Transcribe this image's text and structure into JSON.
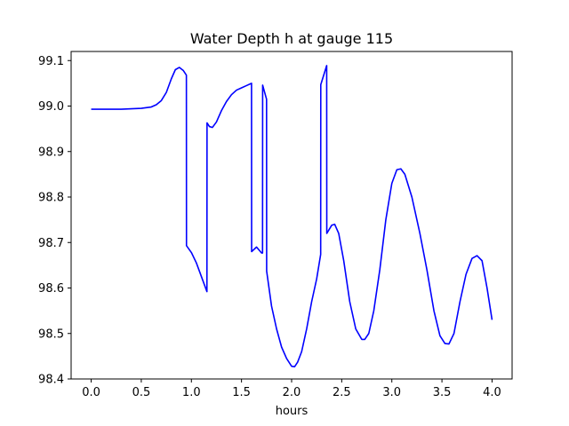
{
  "chart_data": {
    "type": "line",
    "title": "Water Depth h at gauge 115",
    "xlabel": "hours",
    "ylabel": "",
    "xlim": [
      -0.2,
      4.2
    ],
    "ylim": [
      98.4,
      99.12
    ],
    "xticks": [
      0.0,
      0.5,
      1.0,
      1.5,
      2.0,
      2.5,
      3.0,
      3.5,
      4.0
    ],
    "xtick_labels": [
      "0.0",
      "0.5",
      "1.0",
      "1.5",
      "2.0",
      "2.5",
      "3.0",
      "3.5",
      "4.0"
    ],
    "yticks": [
      98.4,
      98.5,
      98.6,
      98.7,
      98.8,
      98.9,
      99.0,
      99.1
    ],
    "ytick_labels": [
      "98.4",
      "98.5",
      "98.6",
      "98.7",
      "98.8",
      "98.9",
      "99.0",
      "99.1"
    ],
    "grid": false,
    "series": [
      {
        "color": "#0000ff",
        "points": [
          [
            0.0,
            98.993
          ],
          [
            0.1,
            98.993
          ],
          [
            0.2,
            98.993
          ],
          [
            0.3,
            98.993
          ],
          [
            0.4,
            98.994
          ],
          [
            0.5,
            98.995
          ],
          [
            0.6,
            98.998
          ],
          [
            0.65,
            99.003
          ],
          [
            0.7,
            99.012
          ],
          [
            0.75,
            99.03
          ],
          [
            0.8,
            99.06
          ],
          [
            0.84,
            99.08
          ],
          [
            0.88,
            99.085
          ],
          [
            0.92,
            99.078
          ],
          [
            0.95,
            99.068
          ],
          [
            0.951,
            98.693
          ],
          [
            1.0,
            98.678
          ],
          [
            1.05,
            98.655
          ],
          [
            1.1,
            98.625
          ],
          [
            1.155,
            98.592
          ],
          [
            1.156,
            98.963
          ],
          [
            1.18,
            98.955
          ],
          [
            1.21,
            98.953
          ],
          [
            1.25,
            98.965
          ],
          [
            1.3,
            98.99
          ],
          [
            1.35,
            99.01
          ],
          [
            1.4,
            99.025
          ],
          [
            1.45,
            99.035
          ],
          [
            1.5,
            99.04
          ],
          [
            1.55,
            99.045
          ],
          [
            1.6,
            99.05
          ],
          [
            1.601,
            98.68
          ],
          [
            1.65,
            98.69
          ],
          [
            1.7,
            98.677
          ],
          [
            1.71,
            98.677
          ],
          [
            1.711,
            99.046
          ],
          [
            1.75,
            99.015
          ],
          [
            1.751,
            98.637
          ],
          [
            1.8,
            98.56
          ],
          [
            1.85,
            98.51
          ],
          [
            1.9,
            98.47
          ],
          [
            1.95,
            98.445
          ],
          [
            2.0,
            98.428
          ],
          [
            2.03,
            98.427
          ],
          [
            2.06,
            98.437
          ],
          [
            2.1,
            98.46
          ],
          [
            2.15,
            98.51
          ],
          [
            2.2,
            98.57
          ],
          [
            2.25,
            98.62
          ],
          [
            2.29,
            98.674
          ],
          [
            2.291,
            99.047
          ],
          [
            2.35,
            99.089
          ],
          [
            2.351,
            98.72
          ],
          [
            2.4,
            98.738
          ],
          [
            2.43,
            98.74
          ],
          [
            2.47,
            98.72
          ],
          [
            2.52,
            98.66
          ],
          [
            2.58,
            98.57
          ],
          [
            2.64,
            98.51
          ],
          [
            2.7,
            98.487
          ],
          [
            2.73,
            98.487
          ],
          [
            2.77,
            98.5
          ],
          [
            2.82,
            98.55
          ],
          [
            2.88,
            98.64
          ],
          [
            2.94,
            98.75
          ],
          [
            3.0,
            98.83
          ],
          [
            3.05,
            98.86
          ],
          [
            3.09,
            98.862
          ],
          [
            3.13,
            98.85
          ],
          [
            3.2,
            98.8
          ],
          [
            3.28,
            98.72
          ],
          [
            3.35,
            98.64
          ],
          [
            3.42,
            98.55
          ],
          [
            3.48,
            98.495
          ],
          [
            3.53,
            98.478
          ],
          [
            3.57,
            98.477
          ],
          [
            3.62,
            98.5
          ],
          [
            3.68,
            98.57
          ],
          [
            3.74,
            98.63
          ],
          [
            3.8,
            98.665
          ],
          [
            3.85,
            98.671
          ],
          [
            3.9,
            98.66
          ],
          [
            3.95,
            98.6
          ],
          [
            4.0,
            98.53
          ]
        ]
      }
    ]
  }
}
